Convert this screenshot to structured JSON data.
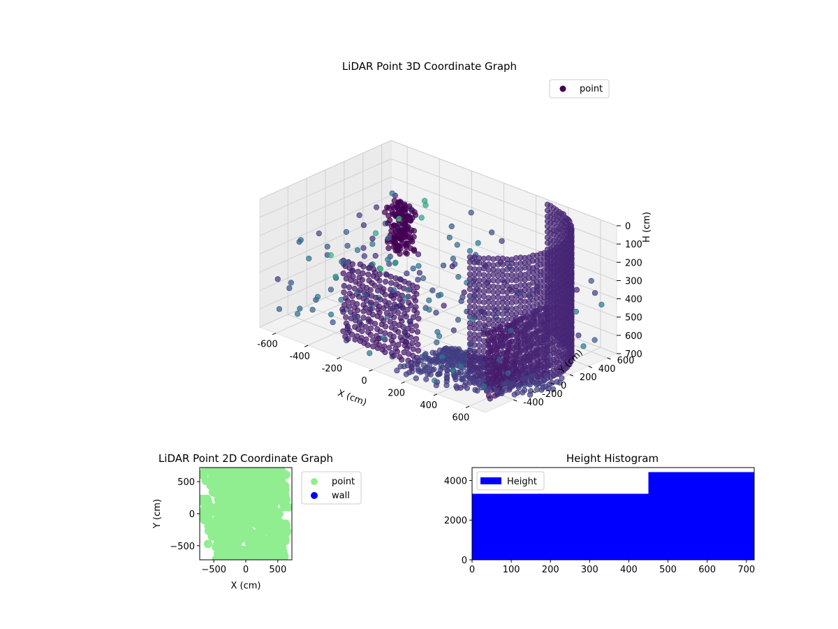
{
  "chart_data": [
    {
      "type": "scatter",
      "title": "LiDAR Point 3D Coordinate Graph",
      "xlabel": "X (cm)",
      "ylabel": "Y (cm)",
      "zlabel": "H (cm)",
      "xlim": [
        -700,
        700
      ],
      "ylim": [
        -700,
        700
      ],
      "zlim": [
        700,
        0
      ],
      "x_ticks": [
        -600,
        -400,
        -200,
        0,
        200,
        400,
        600
      ],
      "y_ticks": [
        -400,
        -200,
        0,
        200,
        400,
        600
      ],
      "z_ticks": [
        0,
        100,
        200,
        300,
        400,
        500,
        600,
        700
      ],
      "grid": true,
      "legend": "upper-right",
      "series": [
        {
          "name": "point",
          "legend_color": "#440154",
          "clusters": [
            {
              "kind": "arc-wall",
              "x_range": [
                -100,
                650
              ],
              "y_range": [
                -550,
                650
              ],
              "h_range": [
                0,
                700
              ]
            },
            {
              "kind": "dense-column",
              "x": -350,
              "y": 150,
              "h_range": [
                100,
                350
              ]
            },
            {
              "kind": "floor-fan",
              "x_range": [
                -300,
                600
              ],
              "y_range": [
                -500,
                300
              ],
              "h": 650
            },
            {
              "kind": "scattered",
              "count": 200,
              "x_range": [
                -700,
                700
              ],
              "y_range": [
                -700,
                700
              ],
              "h_range": [
                200,
                700
              ]
            }
          ]
        }
      ]
    },
    {
      "type": "scatter",
      "title": "LiDAR Point 2D Coordinate Graph",
      "xlabel": "X (cm)",
      "ylabel": "Y (cm)",
      "xlim": [
        -720,
        720
      ],
      "ylim": [
        -720,
        720
      ],
      "x_ticks": [
        -500,
        0,
        500
      ],
      "y_ticks": [
        -500,
        0,
        500
      ],
      "legend": "outside-right",
      "series": [
        {
          "name": "point",
          "color": "#90EE90"
        },
        {
          "name": "wall",
          "color": "#0000FF"
        }
      ]
    },
    {
      "type": "bar",
      "title": "Height Histogram",
      "xlim": [
        0,
        720
      ],
      "ylim": [
        0,
        4650
      ],
      "x_ticks": [
        0,
        100,
        200,
        300,
        400,
        500,
        600,
        700
      ],
      "y_ticks": [
        0,
        2000,
        4000
      ],
      "legend": "upper-left",
      "series": [
        {
          "name": "Height",
          "color": "#0000FF",
          "bins": [
            {
              "x0": 0,
              "x1": 450,
              "count": 3330
            },
            {
              "x0": 450,
              "x1": 720,
              "count": 4420
            }
          ]
        }
      ]
    }
  ]
}
